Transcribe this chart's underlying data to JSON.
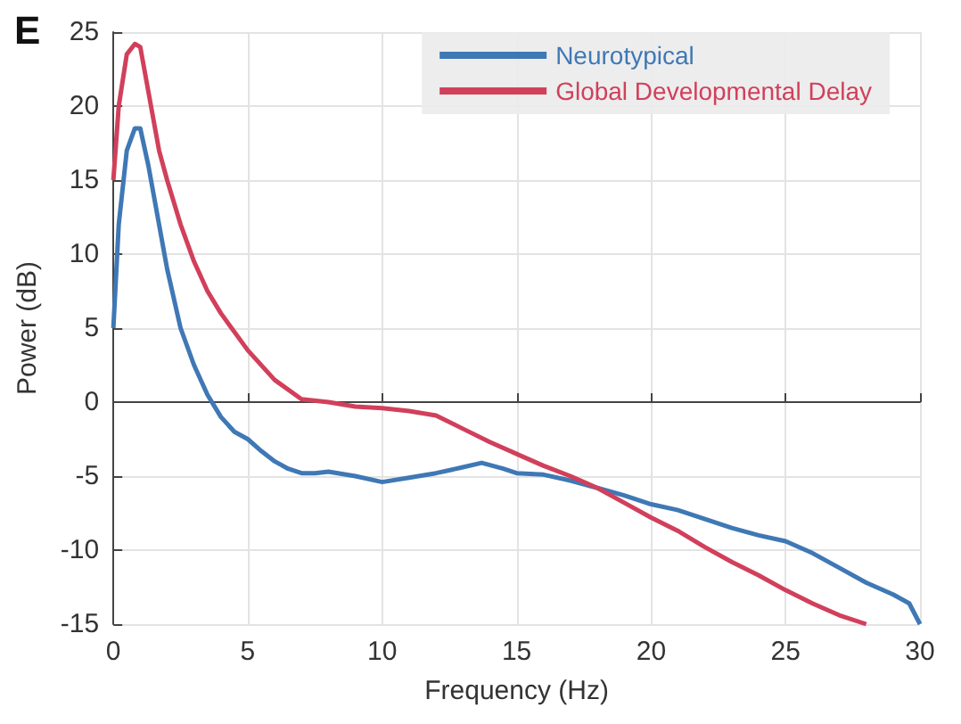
{
  "chart_data": {
    "type": "line",
    "xlabel": "Frequency (Hz)",
    "ylabel": "Power (dB)",
    "annotations": [
      "E"
    ],
    "xlim": [
      0,
      30
    ],
    "xticks": [
      0,
      5,
      10,
      15,
      20,
      25,
      30
    ],
    "ylim": [
      -15,
      25
    ],
    "yticks": [
      -15,
      -10,
      -5,
      0,
      5,
      10,
      15,
      20,
      25
    ],
    "grid": true,
    "legend": "top right",
    "marker": "none",
    "line_style": "solid",
    "series": [
      {
        "name": "Neurotypical",
        "color": "#3f78b5",
        "x": [
          0,
          0.2,
          0.5,
          0.8,
          1.0,
          1.3,
          1.7,
          2,
          2.5,
          3,
          3.5,
          4,
          4.5,
          5,
          5.5,
          6,
          6.5,
          7,
          7.5,
          8,
          9,
          10,
          11,
          12,
          13,
          13.7,
          14.5,
          15,
          16,
          17,
          18,
          19,
          20,
          21,
          22,
          23,
          24,
          25,
          26,
          27,
          28,
          29,
          29.6,
          30
        ],
        "values": [
          5,
          12,
          17,
          18.5,
          18.5,
          16,
          12,
          9,
          5,
          2.5,
          0.5,
          -1,
          -2,
          -2.5,
          -3.3,
          -4,
          -4.5,
          -4.8,
          -4.8,
          -4.7,
          -5,
          -5.4,
          -5.1,
          -4.8,
          -4.4,
          -4.1,
          -4.5,
          -4.8,
          -4.9,
          -5.3,
          -5.8,
          -6.3,
          -6.9,
          -7.3,
          -7.9,
          -8.5,
          -9,
          -9.4,
          -10.2,
          -11.2,
          -12.2,
          -13,
          -13.6,
          -15
        ]
      },
      {
        "name": "Global Developmental Delay",
        "color": "#d1405b",
        "x": [
          0,
          0.2,
          0.5,
          0.8,
          1.0,
          1.3,
          1.7,
          2,
          2.5,
          3,
          3.5,
          4,
          5,
          6,
          7,
          8,
          9,
          10,
          11,
          12,
          13,
          14,
          15,
          16,
          17,
          18,
          19,
          20,
          21,
          22,
          23,
          24,
          25,
          26,
          27,
          28
        ],
        "values": [
          15,
          20,
          23.5,
          24.2,
          24,
          21,
          17,
          15,
          12,
          9.5,
          7.5,
          6,
          3.5,
          1.5,
          0.2,
          0,
          -0.3,
          -0.4,
          -0.6,
          -0.9,
          -1.8,
          -2.7,
          -3.5,
          -4.3,
          -5,
          -5.8,
          -6.8,
          -7.8,
          -8.7,
          -9.8,
          -10.8,
          -11.7,
          -12.7,
          -13.6,
          -14.4,
          -15
        ]
      }
    ]
  }
}
